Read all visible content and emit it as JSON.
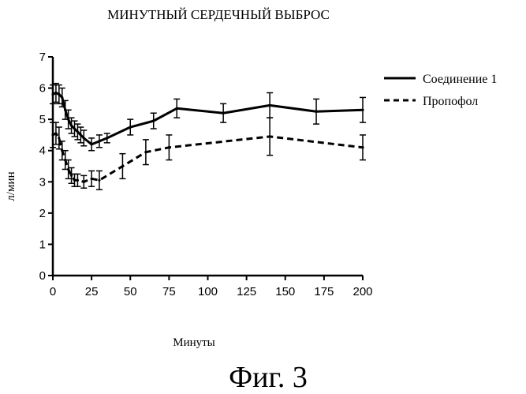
{
  "chart_data": {
    "type": "line",
    "title": "МИНУТНЫЙ СЕРДЕЧНЫЙ ВЫБРОС",
    "xlabel": "Минуты",
    "ylabel": "л/мин",
    "xlim": [
      0,
      200
    ],
    "ylim": [
      0,
      7
    ],
    "xticks": [
      0,
      25,
      50,
      75,
      100,
      125,
      150,
      175,
      200
    ],
    "yticks": [
      0,
      1,
      2,
      3,
      4,
      5,
      6,
      7
    ],
    "grid": false,
    "legend_position": "top-right",
    "series": [
      {
        "name": "Соединение 1",
        "style": "solid",
        "points": [
          {
            "x": 0,
            "y": 5.8,
            "err": 0.3
          },
          {
            "x": 2,
            "y": 5.85,
            "err": 0.3
          },
          {
            "x": 4,
            "y": 5.8,
            "err": 0.3
          },
          {
            "x": 6,
            "y": 5.7,
            "err": 0.3
          },
          {
            "x": 8,
            "y": 5.3,
            "err": 0.3
          },
          {
            "x": 10,
            "y": 5.0,
            "err": 0.3
          },
          {
            "x": 12,
            "y": 4.8,
            "err": 0.25
          },
          {
            "x": 14,
            "y": 4.7,
            "err": 0.25
          },
          {
            "x": 16,
            "y": 4.6,
            "err": 0.25
          },
          {
            "x": 18,
            "y": 4.5,
            "err": 0.25
          },
          {
            "x": 20,
            "y": 4.4,
            "err": 0.25
          },
          {
            "x": 25,
            "y": 4.2,
            "err": 0.2
          },
          {
            "x": 30,
            "y": 4.3,
            "err": 0.2
          },
          {
            "x": 35,
            "y": 4.4,
            "err": 0.15
          },
          {
            "x": 50,
            "y": 4.75,
            "err": 0.25
          },
          {
            "x": 65,
            "y": 4.95,
            "err": 0.25
          },
          {
            "x": 80,
            "y": 5.35,
            "err": 0.3
          },
          {
            "x": 110,
            "y": 5.2,
            "err": 0.3
          },
          {
            "x": 140,
            "y": 5.45,
            "err": 0.4
          },
          {
            "x": 170,
            "y": 5.25,
            "err": 0.4
          },
          {
            "x": 200,
            "y": 5.3,
            "err": 0.4
          }
        ]
      },
      {
        "name": "Пропофол",
        "style": "dashed",
        "points": [
          {
            "x": 0,
            "y": 4.5,
            "err": 0.4
          },
          {
            "x": 2,
            "y": 4.55,
            "err": 0.35
          },
          {
            "x": 4,
            "y": 4.4,
            "err": 0.35
          },
          {
            "x": 6,
            "y": 4.0,
            "err": 0.3
          },
          {
            "x": 8,
            "y": 3.7,
            "err": 0.3
          },
          {
            "x": 10,
            "y": 3.4,
            "err": 0.3
          },
          {
            "x": 12,
            "y": 3.2,
            "err": 0.25
          },
          {
            "x": 14,
            "y": 3.05,
            "err": 0.2
          },
          {
            "x": 16,
            "y": 3.05,
            "err": 0.2
          },
          {
            "x": 20,
            "y": 3.0,
            "err": 0.2
          },
          {
            "x": 25,
            "y": 3.1,
            "err": 0.25
          },
          {
            "x": 30,
            "y": 3.05,
            "err": 0.3
          },
          {
            "x": 45,
            "y": 3.5,
            "err": 0.4
          },
          {
            "x": 60,
            "y": 3.95,
            "err": 0.4
          },
          {
            "x": 75,
            "y": 4.1,
            "err": 0.4
          },
          {
            "x": 140,
            "y": 4.45,
            "err": 0.6
          },
          {
            "x": 200,
            "y": 4.1,
            "err": 0.4
          }
        ]
      }
    ]
  },
  "caption": "Фиг. 3"
}
